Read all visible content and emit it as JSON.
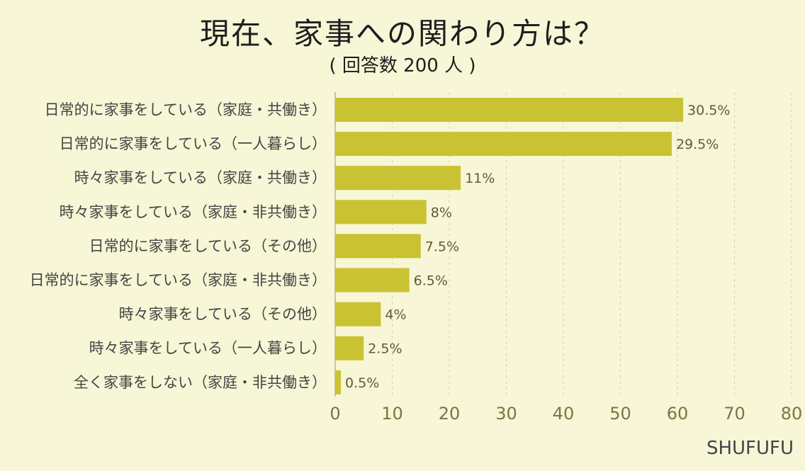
{
  "title": "現在、家事への関わり方は？",
  "subtitle": "( 回答数 200 人 )",
  "brand": "SHUFUFU",
  "colors": {
    "bar": "#c9c232",
    "background": "#f7f6d6",
    "grid": "#d6d4b8"
  },
  "chart_data": {
    "type": "bar",
    "orientation": "horizontal",
    "categories": [
      "日常的に家事をしている（家庭・共働き）",
      "日常的に家事をしている（一人暮らし）",
      "時々家事をしている（家庭・共働き）",
      "時々家事をしている（家庭・非共働き）",
      "日常的に家事をしている（その他）",
      "日常的に家事をしている（家庭・非共働き）",
      "時々家事をしている（その他）",
      "時々家事をしている（一人暮らし）",
      "全く家事をしない（家庭・非共働き）"
    ],
    "values": [
      61,
      59,
      22,
      16,
      15,
      13,
      8,
      5,
      1
    ],
    "data_labels": [
      "30.5%",
      "29.5%",
      "11%",
      "8%",
      "7.5%",
      "6.5%",
      "4%",
      "2.5%",
      "0.5%"
    ],
    "xlim": [
      0,
      80
    ],
    "xticks": [
      0,
      10,
      20,
      30,
      40,
      50,
      60,
      70,
      80
    ],
    "grid": true
  }
}
